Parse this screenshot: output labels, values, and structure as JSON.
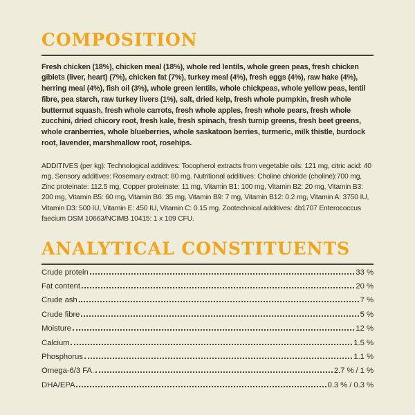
{
  "theme": {
    "background": "#EEECDB",
    "accent": "#F0A51F",
    "text": "#2F2E26",
    "rule": "#403E32"
  },
  "composition": {
    "heading": "COMPOSITION",
    "ingredients": "Fresh chicken (18%), chicken meal (18%), whole red lentils, whole green peas, fresh chicken giblets (liver, heart) (7%), chicken fat (7%), turkey meal (4%), fresh eggs (4%), raw hake (4%), herring meal (4%), fish oil (3%), whole green lentils, whole chickpeas, whole yellow peas, lentil fibre, pea starch, raw turkey livers (1%), salt, dried kelp, fresh whole pumpkin, fresh whole butternut squash, fresh whole carrots, fresh whole apples, fresh whole pears, fresh whole zucchini, dried chicory root, fresh kale, fresh spinach, fresh turnip greens, fresh beet greens, whole cranberries, whole blueberries, whole saskatoon berries, turmeric, milk thistle, burdock root, lavender, marshmallow root, rosehips.",
    "additives": "ADDITIVES (per kg): Technological additives: Tocopherol extracts from vegetable oils: 121 mg, citric acid: 40 mg. Sensory additives: Rosemary extract: 80 mg. Nutritional additives: Choline chloride (choline):700 mg, Zinc proteinate: 112.5 mg, Copper proteinate: 11 mg, Vitamin B1: 100 mg, Vitamin B2: 20 mg, Vitamin B3: 200 mg, Vitamin B5: 60 mg, Vitamin B6: 35 mg, Vitamin B9: 7 mg, Vitamin B12: 0.2 mg, Vitamin A: 3750 IU, Vitamin D3: 500 IU, Vitamin E: 450 IU, Vitamin C: 0.15 mg. Zootechnical additives: 4b1707 Enterococcus faecium DSM 10663/NCIMB 10415: 1 x 109 CFU."
  },
  "analytical": {
    "heading": "ANALYTICAL CONSTITUENTS",
    "rows": [
      {
        "label": "Crude protein",
        "value": "33 %"
      },
      {
        "label": "Fat content",
        "value": "20 %"
      },
      {
        "label": "Crude ash",
        "value": "7 %"
      },
      {
        "label": "Crude fibre",
        "value": "5 %"
      },
      {
        "label": "Moisture",
        "value": "12 %"
      },
      {
        "label": "Calcium",
        "value": "1.5 %"
      },
      {
        "label": "Phosphorus",
        "value": "1.1 %"
      },
      {
        "label": "Omega-6/3 FA.",
        "value": "2.7 % / 1 %"
      },
      {
        "label": "DHA/EPA",
        "value": "0.3 % / 0.3 %"
      }
    ]
  }
}
